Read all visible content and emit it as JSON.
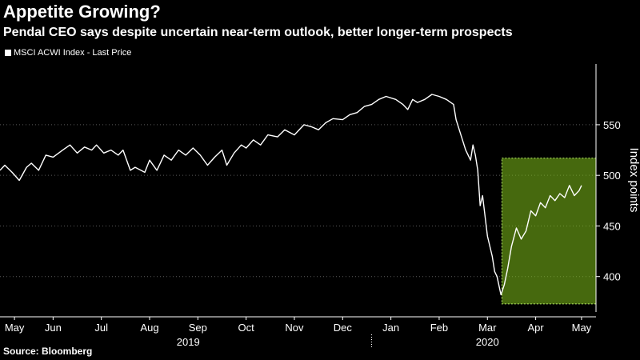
{
  "chart_data": {
    "type": "line",
    "title": "Appetite Growing?",
    "subtitle": "Pendal CEO says despite uncertain near-term outlook, better longer-term prospects",
    "legend": "MSCI ACWI Index - Last Price",
    "ylabel": "Index points",
    "xlabel": "",
    "source": "Source: Bloomberg",
    "ylim": [
      365,
      610
    ],
    "yticks": [
      400,
      450,
      500,
      550
    ],
    "x_range": [
      0,
      12.35
    ],
    "months": [
      "May",
      "Jun",
      "Jul",
      "Aug",
      "Sep",
      "Oct",
      "Nov",
      "Dec",
      "Jan",
      "Feb",
      "Mar",
      "Apr",
      "May"
    ],
    "month_positions": [
      0.3,
      1.1,
      2.1,
      3.1,
      4.1,
      5.1,
      6.1,
      7.1,
      8.1,
      9.1,
      10.1,
      11.1,
      12.05
    ],
    "years": [
      {
        "label": "2019",
        "x": 3.9
      },
      {
        "label": "2020",
        "x": 10.1
      }
    ],
    "year_separator_x": 7.7,
    "highlight": {
      "x_start": 10.4,
      "x_end": 12.35,
      "y_start": 373,
      "y_end": 517,
      "color": "#7fbf1a"
    },
    "series": [
      {
        "name": "MSCI ACWI Index",
        "color": "#ffffff",
        "x": [
          0,
          0.1,
          0.25,
          0.4,
          0.55,
          0.65,
          0.8,
          0.95,
          1.1,
          1.3,
          1.45,
          1.6,
          1.75,
          1.9,
          2.0,
          2.15,
          2.3,
          2.45,
          2.55,
          2.7,
          2.8,
          3.0,
          3.1,
          3.25,
          3.4,
          3.55,
          3.7,
          3.85,
          4.0,
          4.15,
          4.3,
          4.45,
          4.6,
          4.7,
          4.85,
          5.0,
          5.1,
          5.25,
          5.4,
          5.55,
          5.75,
          5.9,
          6.1,
          6.3,
          6.45,
          6.6,
          6.75,
          6.9,
          7.1,
          7.25,
          7.4,
          7.55,
          7.7,
          7.85,
          8.0,
          8.2,
          8.35,
          8.45,
          8.55,
          8.65,
          8.8,
          8.95,
          9.1,
          9.25,
          9.4,
          9.45,
          9.55,
          9.65,
          9.75,
          9.8,
          9.85,
          9.9,
          9.95,
          10.0,
          10.1,
          10.2,
          10.25,
          10.3,
          10.38,
          10.45,
          10.52,
          10.6,
          10.7,
          10.8,
          10.9,
          11.0,
          11.1,
          11.2,
          11.3,
          11.4,
          11.5,
          11.6,
          11.7,
          11.8,
          11.9,
          12.0,
          12.05
        ],
        "y": [
          505,
          510,
          503,
          495,
          508,
          512,
          505,
          520,
          518,
          525,
          530,
          522,
          528,
          525,
          530,
          522,
          525,
          520,
          525,
          505,
          508,
          503,
          515,
          505,
          520,
          515,
          525,
          520,
          527,
          520,
          510,
          518,
          525,
          510,
          522,
          530,
          527,
          535,
          530,
          540,
          538,
          545,
          540,
          550,
          548,
          545,
          552,
          556,
          555,
          560,
          562,
          568,
          570,
          575,
          578,
          575,
          570,
          565,
          575,
          572,
          575,
          580,
          578,
          575,
          570,
          555,
          540,
          525,
          515,
          530,
          520,
          505,
          470,
          480,
          440,
          420,
          405,
          400,
          382,
          392,
          408,
          430,
          448,
          437,
          445,
          465,
          460,
          473,
          468,
          480,
          475,
          482,
          478,
          490,
          480,
          485,
          490
        ]
      }
    ]
  }
}
